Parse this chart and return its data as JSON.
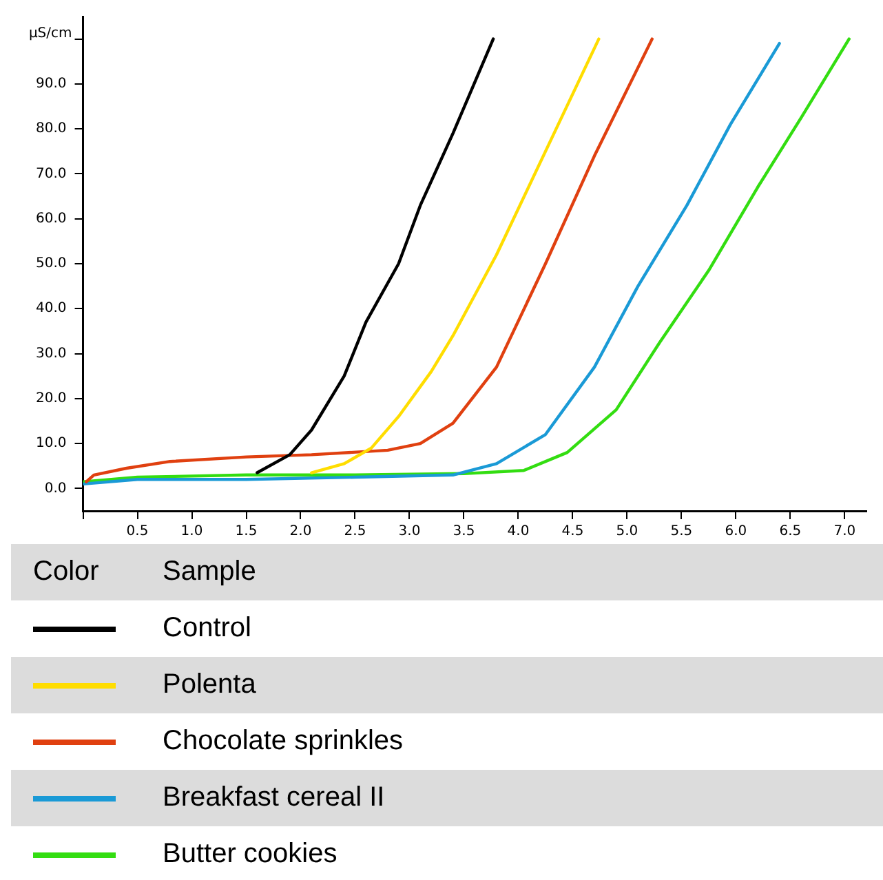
{
  "chart_data": {
    "type": "line",
    "ylabel": "µS/cm",
    "legend_title": "Sample",
    "annotations": [
      "Color"
    ],
    "marker": "none",
    "grid": false,
    "legend": "bottom",
    "xlim": [
      0,
      7.2
    ],
    "ylim": [
      -5,
      105
    ],
    "xticks": [
      {
        "value": 0,
        "label": null
      },
      {
        "value": 0.5,
        "label": "0.5"
      },
      {
        "value": 1,
        "label": "1.0"
      },
      {
        "value": 1.5,
        "label": "1.5"
      },
      {
        "value": 2,
        "label": "2.0"
      },
      {
        "value": 2.5,
        "label": "2.5"
      },
      {
        "value": 3,
        "label": "3.0"
      },
      {
        "value": 3.5,
        "label": "3.5"
      },
      {
        "value": 4,
        "label": "4.0"
      },
      {
        "value": 4.5,
        "label": "4.5"
      },
      {
        "value": 5,
        "label": "5.0"
      },
      {
        "value": 5.5,
        "label": "5.5"
      },
      {
        "value": 6,
        "label": "6.0"
      },
      {
        "value": 6.5,
        "label": "6.5"
      },
      {
        "value": 7,
        "label": "7.0"
      }
    ],
    "yticks": [
      {
        "value": 0,
        "label": "0.0"
      },
      {
        "value": 10,
        "label": "10.0"
      },
      {
        "value": 20,
        "label": "20.0"
      },
      {
        "value": 30,
        "label": "30.0"
      },
      {
        "value": 40,
        "label": "40.0"
      },
      {
        "value": 50,
        "label": "50.0"
      },
      {
        "value": 60,
        "label": "60.0"
      },
      {
        "value": 70,
        "label": "70.0"
      },
      {
        "value": 80,
        "label": "80.0"
      },
      {
        "value": 90,
        "label": "90.0"
      },
      {
        "value": 100,
        "label": null
      }
    ],
    "series": [
      {
        "name": "Control",
        "color": "#000000",
        "x": [
          1.6,
          1.9,
          2.1,
          2.4,
          2.6,
          2.9,
          3.1,
          3.4,
          3.77
        ],
        "values": [
          3.5,
          7.5,
          13,
          25,
          37,
          50,
          63,
          79,
          100
        ]
      },
      {
        "name": "Polenta",
        "color": "#ffdd00",
        "x": [
          2.1,
          2.4,
          2.65,
          2.9,
          3.2,
          3.4,
          3.8,
          4.25,
          4.74
        ],
        "values": [
          3.5,
          5.5,
          9,
          16,
          26,
          34,
          52,
          75,
          100
        ]
      },
      {
        "name": "Chocolate sprinkles",
        "color": "#e04010",
        "x": [
          0.03,
          0.1,
          0.4,
          0.8,
          1.5,
          2.1,
          2.8,
          3.1,
          3.4,
          3.8,
          4.25,
          4.7,
          5.23
        ],
        "values": [
          1.5,
          3,
          4.5,
          6,
          7,
          7.5,
          8.5,
          10,
          14.5,
          27,
          50,
          74,
          100
        ]
      },
      {
        "name": "Breakfast cereal II",
        "color": "#1a9ad6",
        "x": [
          0,
          0.5,
          1.5,
          2.5,
          3.4,
          3.8,
          4.25,
          4.7,
          5.1,
          5.55,
          5.95,
          6.4
        ],
        "values": [
          1,
          2,
          2,
          2.5,
          3,
          5.5,
          12,
          27,
          45,
          63,
          81,
          99
        ]
      },
      {
        "name": "Butter cookies",
        "color": "#33dd11",
        "x": [
          0,
          0.5,
          1.5,
          2.5,
          3.5,
          4.05,
          4.45,
          4.9,
          5.3,
          5.75,
          6.2,
          6.6,
          7.04
        ],
        "values": [
          1.5,
          2.5,
          3,
          3,
          3.3,
          4,
          8,
          17.5,
          32.5,
          48.5,
          67,
          82.5,
          100
        ]
      }
    ]
  }
}
